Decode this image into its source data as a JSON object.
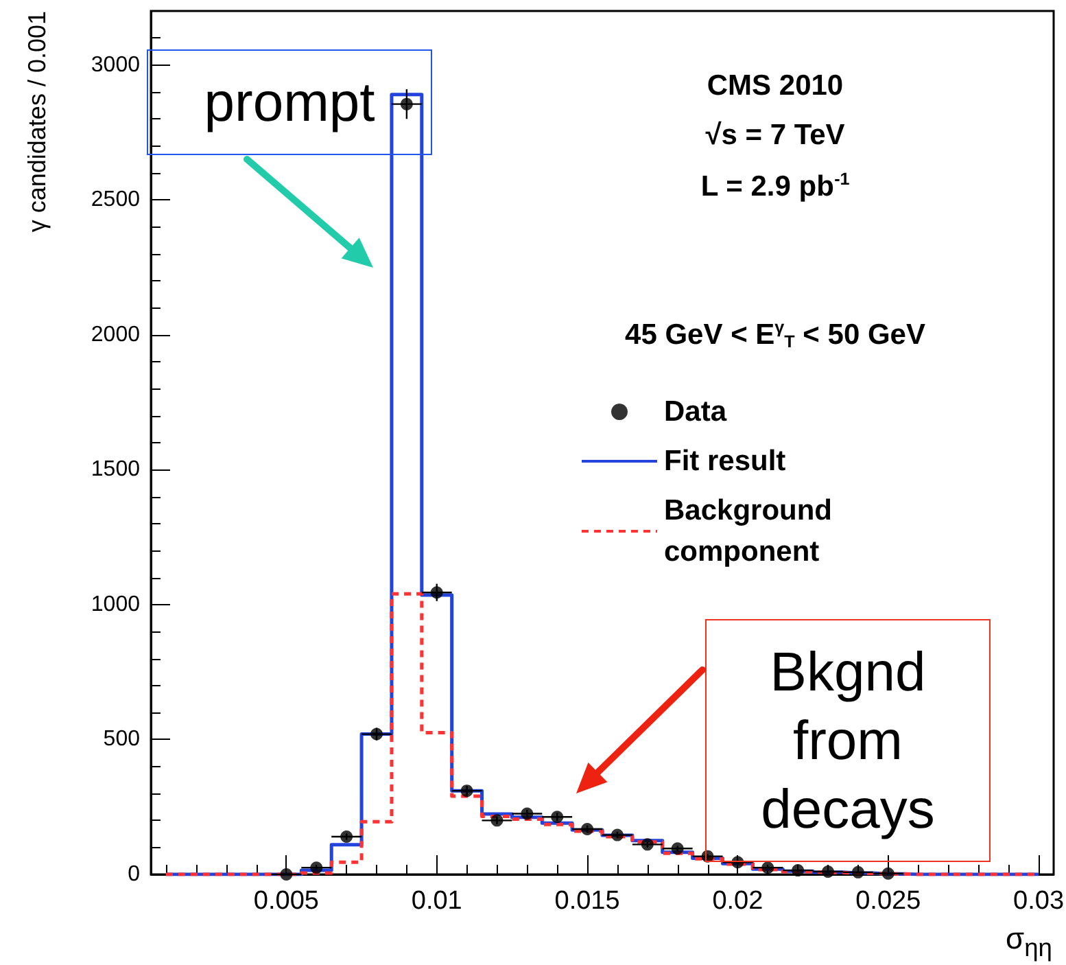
{
  "chart_data": {
    "type": "step",
    "xlabel": "σ$_{ηη}$",
    "ylabel": "γ candidates / 0.001",
    "xlim": [
      0.0005,
      0.0305
    ],
    "xticks": [
      0.005,
      0.01,
      0.015,
      0.02,
      0.025,
      0.03
    ],
    "ylim": [
      0,
      3200
    ],
    "yticks": [
      0,
      500,
      1000,
      1500,
      2000,
      2500,
      3000
    ],
    "grid": false,
    "legend": "right",
    "series": [
      {
        "name": "Data",
        "type": "scatter",
        "marker": "circle",
        "color": "#000000",
        "x": [
          0.005,
          0.006,
          0.007,
          0.008,
          0.009,
          0.01,
          0.011,
          0.012,
          0.013,
          0.014,
          0.015,
          0.016,
          0.017,
          0.018,
          0.019,
          0.02,
          0.021,
          0.022,
          0.023,
          0.024,
          0.025
        ],
        "values": [
          0,
          25,
          140,
          520,
          2855,
          1045,
          310,
          200,
          225,
          213,
          168,
          146,
          111,
          96,
          67,
          45,
          25,
          15,
          10,
          8,
          3
        ],
        "errors": [
          2,
          5,
          12,
          23,
          55,
          32,
          18,
          14,
          15,
          15,
          13,
          12,
          11,
          10,
          8,
          7,
          5,
          4,
          3,
          3,
          2
        ],
        "xerrors": [
          0.0005,
          0.0005,
          0.0005,
          0.0005,
          0.0005,
          0.0005,
          0.0005,
          0.0005,
          0.0005,
          0.0005,
          0.0005,
          0.0005,
          0.0005,
          0.0005,
          0.0005,
          0.0005,
          0.0005,
          0.0005,
          0.0005,
          0.0005,
          0.0005
        ]
      },
      {
        "name": "Fit result",
        "color": "#2244dd",
        "line_style": "solid",
        "x": [
          0.001,
          0.002,
          0.003,
          0.004,
          0.005,
          0.006,
          0.007,
          0.008,
          0.009,
          0.01,
          0.011,
          0.012,
          0.013,
          0.014,
          0.015,
          0.016,
          0.017,
          0.018,
          0.019,
          0.02,
          0.021,
          0.022,
          0.023,
          0.024,
          0.025,
          0.026,
          0.027,
          0.028,
          0.029,
          0.03
        ],
        "values": [
          0,
          0,
          0,
          0,
          0,
          15,
          110,
          520,
          2890,
          1035,
          310,
          224,
          212,
          190,
          165,
          145,
          125,
          82,
          60,
          40,
          20,
          12,
          8,
          5,
          2,
          0,
          0,
          0,
          0,
          0
        ]
      },
      {
        "name": "Background component",
        "color": "#ff3333",
        "line_style": "dashed",
        "x": [
          0.001,
          0.002,
          0.003,
          0.004,
          0.005,
          0.006,
          0.007,
          0.008,
          0.009,
          0.01,
          0.011,
          0.012,
          0.013,
          0.014,
          0.015,
          0.016,
          0.017,
          0.018,
          0.019,
          0.02,
          0.021,
          0.022,
          0.023,
          0.024,
          0.025,
          0.026,
          0.027,
          0.028,
          0.029,
          0.03
        ],
        "values": [
          0,
          0,
          0,
          0,
          0,
          5,
          45,
          195,
          1040,
          525,
          290,
          215,
          205,
          185,
          160,
          140,
          120,
          78,
          58,
          38,
          18,
          10,
          7,
          4,
          2,
          0,
          0,
          0,
          0,
          0
        ]
      }
    ],
    "annotations": [
      "prompt",
      "Bkgnd\nfrom\ndecays",
      "CMS 2010",
      "√s = 7 TeV",
      "L = 2.9 pb$^{-1}$",
      "45 GeV < E$^{γ}$$_{T}$ < 50 GeV"
    ]
  }
}
